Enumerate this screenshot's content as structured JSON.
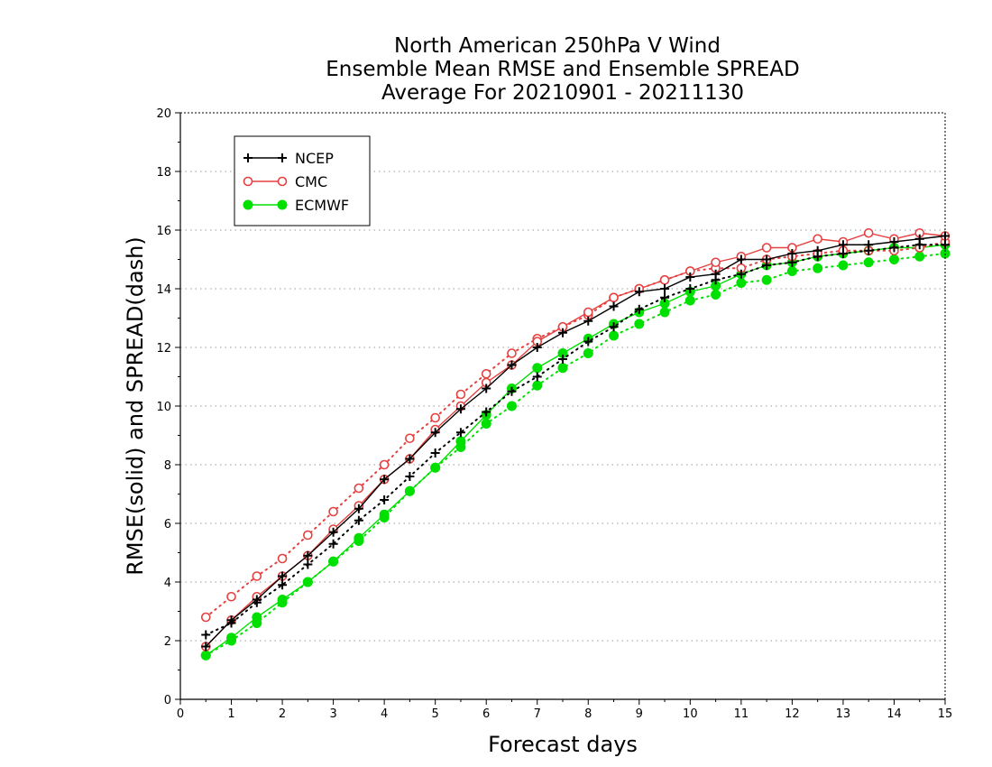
{
  "chart_data": {
    "type": "line",
    "title": [
      "North American 250hPa V Wind",
      "Ensemble Mean RMSE and Ensemble SPREAD",
      "Average For 20210901 - 20211130"
    ],
    "xlabel": "Forecast days",
    "ylabel": "RMSE(solid) and SPREAD(dash)",
    "xlim": [
      0,
      15
    ],
    "ylim": [
      0,
      20
    ],
    "x_ticks": [
      0,
      1,
      2,
      3,
      4,
      5,
      6,
      7,
      8,
      9,
      10,
      11,
      12,
      13,
      14,
      15
    ],
    "y_ticks": [
      0,
      2,
      4,
      6,
      8,
      10,
      12,
      14,
      16,
      18,
      20
    ],
    "grid": "horizontal dotted",
    "legend_position": "top-left",
    "x": [
      0.5,
      1,
      1.5,
      2,
      2.5,
      3,
      3.5,
      4,
      4.5,
      5,
      5.5,
      6,
      6.5,
      7,
      7.5,
      8,
      8.5,
      9,
      9.5,
      10,
      10.5,
      11,
      11.5,
      12,
      12.5,
      13,
      13.5,
      14,
      14.5,
      15
    ],
    "series": [
      {
        "name": "NCEP",
        "color": "#000000",
        "marker": "plus",
        "rmse": [
          1.8,
          2.7,
          3.4,
          4.2,
          4.9,
          5.7,
          6.5,
          7.5,
          8.2,
          9.1,
          9.9,
          10.6,
          11.4,
          12.0,
          12.5,
          12.9,
          13.4,
          13.9,
          14.0,
          14.4,
          14.5,
          15.0,
          15.0,
          15.2,
          15.3,
          15.5,
          15.5,
          15.6,
          15.7,
          15.8
        ],
        "spread": [
          2.2,
          2.6,
          3.3,
          3.9,
          4.6,
          5.3,
          6.1,
          6.8,
          7.6,
          8.4,
          9.1,
          9.8,
          10.5,
          11.0,
          11.6,
          12.2,
          12.7,
          13.3,
          13.7,
          14.0,
          14.3,
          14.5,
          14.8,
          14.9,
          15.1,
          15.2,
          15.3,
          15.4,
          15.5,
          15.5
        ]
      },
      {
        "name": "CMC",
        "color": "#e64040",
        "marker": "open-circle",
        "rmse": [
          1.8,
          2.7,
          3.5,
          4.2,
          4.9,
          5.8,
          6.6,
          7.5,
          8.2,
          9.2,
          10.0,
          10.8,
          11.4,
          12.2,
          12.7,
          13.2,
          13.7,
          14.0,
          14.3,
          14.6,
          14.9,
          15.1,
          15.4,
          15.4,
          15.7,
          15.6,
          15.9,
          15.7,
          15.9,
          15.8
        ],
        "spread": [
          2.8,
          3.5,
          4.2,
          4.8,
          5.6,
          6.4,
          7.2,
          8.0,
          8.9,
          9.6,
          10.4,
          11.1,
          11.8,
          12.3,
          12.7,
          13.1,
          13.7,
          14.0,
          14.3,
          14.6,
          14.7,
          14.7,
          15.0,
          15.1,
          15.2,
          15.3,
          15.3,
          15.3,
          15.4,
          15.6
        ]
      },
      {
        "name": "ECMWF",
        "color": "#00e000",
        "marker": "filled-circle",
        "rmse": [
          1.5,
          2.1,
          2.8,
          3.4,
          4.0,
          4.7,
          5.5,
          6.3,
          7.1,
          7.9,
          8.8,
          9.7,
          10.6,
          11.3,
          11.8,
          12.3,
          12.8,
          13.2,
          13.5,
          13.9,
          14.1,
          14.5,
          14.8,
          14.9,
          15.1,
          15.2,
          15.3,
          15.4,
          15.4,
          15.5
        ],
        "spread": [
          1.5,
          2.0,
          2.6,
          3.3,
          4.0,
          4.7,
          5.4,
          6.2,
          7.1,
          7.9,
          8.6,
          9.4,
          10.0,
          10.7,
          11.3,
          11.8,
          12.4,
          12.8,
          13.2,
          13.6,
          13.8,
          14.2,
          14.3,
          14.6,
          14.7,
          14.8,
          14.9,
          15.0,
          15.1,
          15.2
        ]
      }
    ]
  }
}
